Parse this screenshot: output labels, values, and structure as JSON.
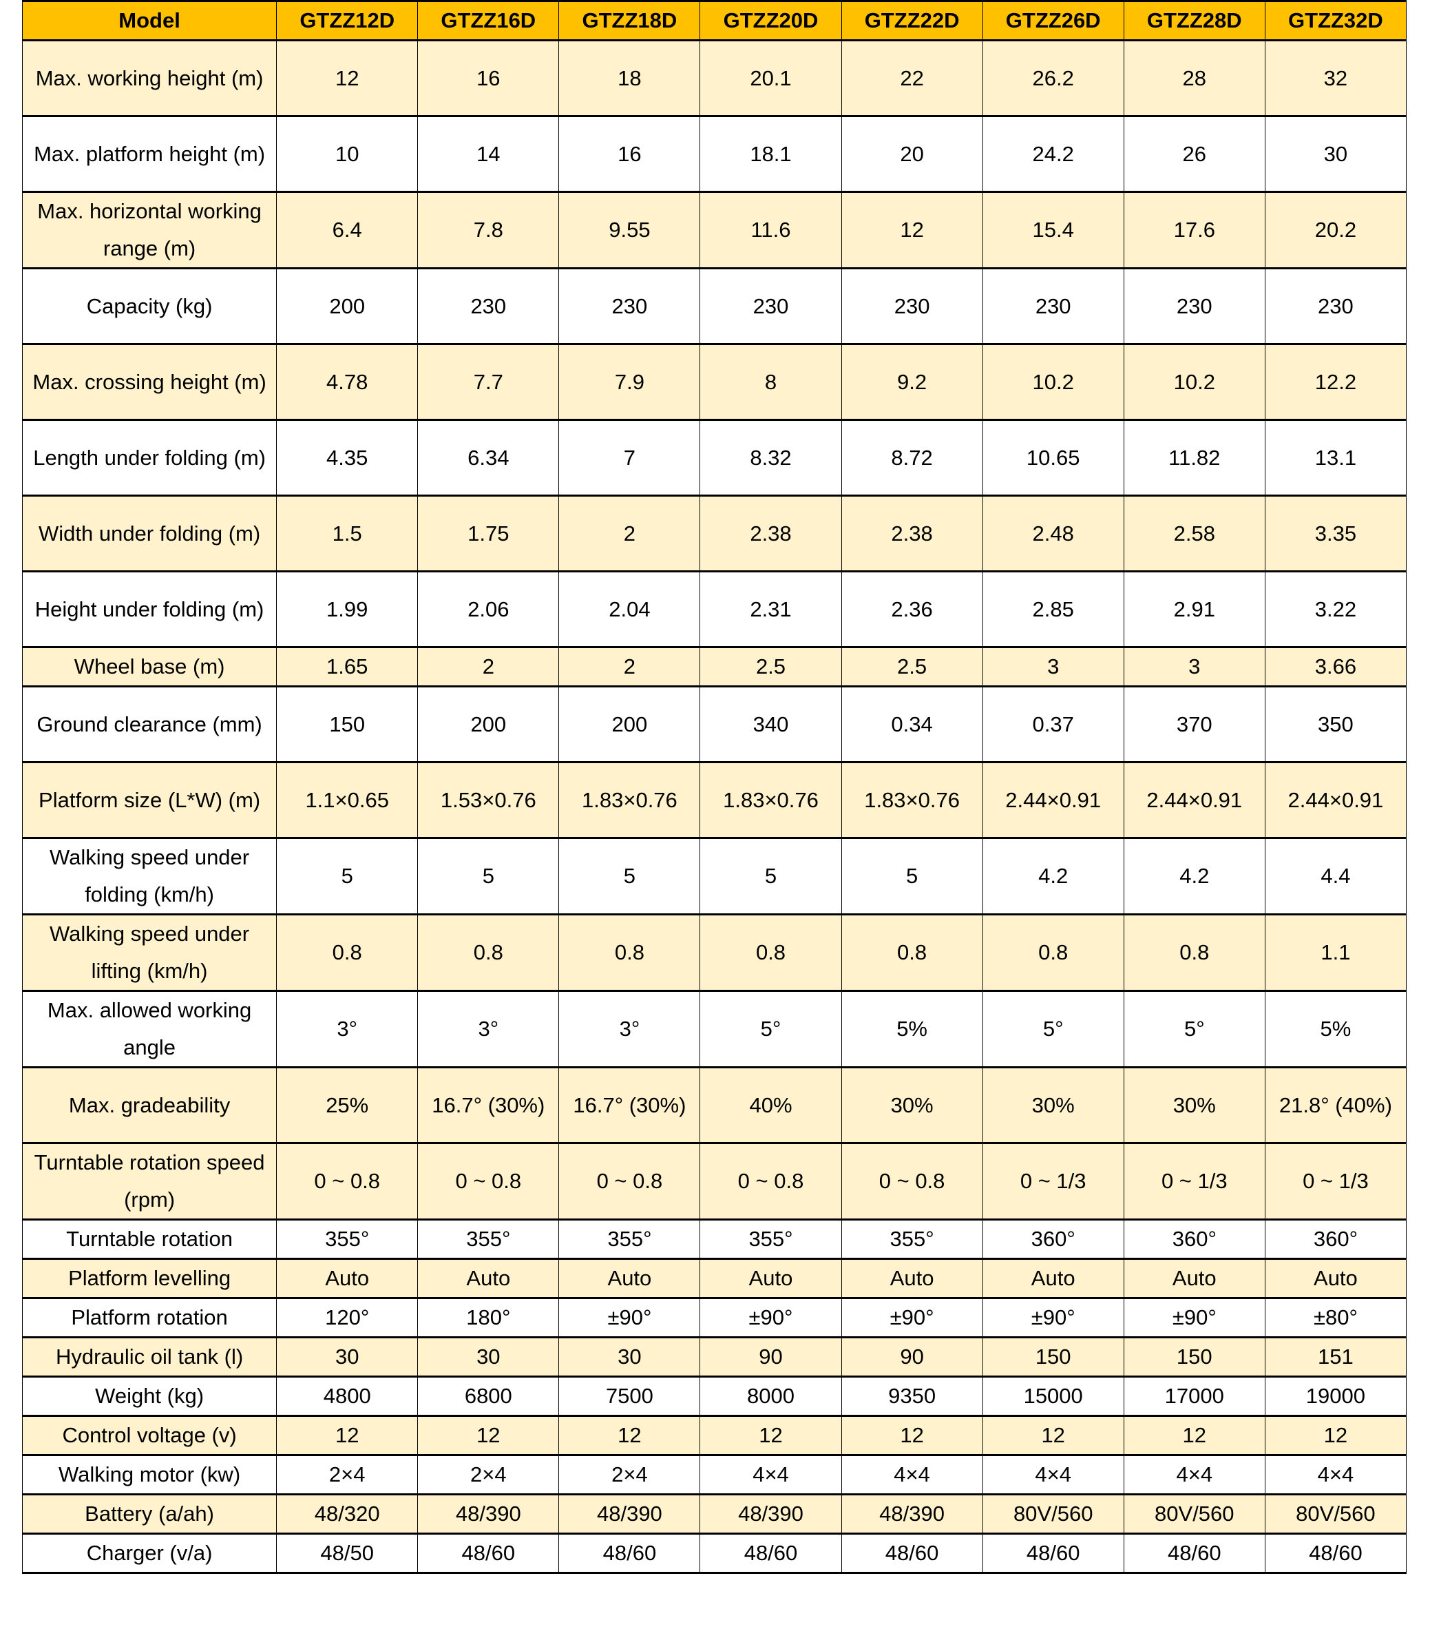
{
  "colors": {
    "header": "#FFC000",
    "shaded_row": "#FFF2CC",
    "plain_row": "#FFFFFF"
  },
  "table": {
    "header": [
      "Model",
      "GTZZ12D",
      "GTZZ16D",
      "GTZZ18D",
      "GTZZ20D",
      "GTZZ22D",
      "GTZZ26D",
      "GTZZ28D",
      "GTZZ32D"
    ],
    "rows": [
      {
        "label": "Max. working height (m)",
        "values": [
          "12",
          "16",
          "18",
          "20.1",
          "22",
          "26.2",
          "28",
          "32"
        ],
        "tall": true,
        "shaded": true
      },
      {
        "label": "Max. platform height (m)",
        "values": [
          "10",
          "14",
          "16",
          "18.1",
          "20",
          "24.2",
          "26",
          "30"
        ],
        "tall": true,
        "shaded": false
      },
      {
        "label": "Max. horizontal working range (m)",
        "values": [
          "6.4",
          "7.8",
          "9.55",
          "11.6",
          "12",
          "15.4",
          "17.6",
          "20.2"
        ],
        "tall": true,
        "shaded": true
      },
      {
        "label": "Capacity (kg)",
        "values": [
          "200",
          "230",
          "230",
          "230",
          "230",
          "230",
          "230",
          "230"
        ],
        "tall": true,
        "shaded": false
      },
      {
        "label": "Max. crossing height (m)",
        "values": [
          "4.78",
          "7.7",
          "7.9",
          "8",
          "9.2",
          "10.2",
          "10.2",
          "12.2"
        ],
        "tall": true,
        "shaded": true
      },
      {
        "label": "Length under folding (m)",
        "values": [
          "4.35",
          "6.34",
          "7",
          "8.32",
          "8.72",
          "10.65",
          "11.82",
          "13.1"
        ],
        "tall": true,
        "shaded": false
      },
      {
        "label": "Width under folding (m)",
        "values": [
          "1.5",
          "1.75",
          "2",
          "2.38",
          "2.38",
          "2.48",
          "2.58",
          "3.35"
        ],
        "tall": true,
        "shaded": true
      },
      {
        "label": "Height under folding (m)",
        "values": [
          "1.99",
          "2.06",
          "2.04",
          "2.31",
          "2.36",
          "2.85",
          "2.91",
          "3.22"
        ],
        "tall": true,
        "shaded": false
      },
      {
        "label": "Wheel base (m)",
        "values": [
          "1.65",
          "2",
          "2",
          "2.5",
          "2.5",
          "3",
          "3",
          "3.66"
        ],
        "tall": false,
        "shaded": true
      },
      {
        "label": "Ground clearance (mm)",
        "values": [
          "150",
          "200",
          "200",
          "340",
          "0.34",
          "0.37",
          "370",
          "350"
        ],
        "tall": true,
        "shaded": false
      },
      {
        "label": "Platform size (L*W) (m)",
        "values": [
          "1.1×0.65",
          "1.53×0.76",
          "1.83×0.76",
          "1.83×0.76",
          "1.83×0.76",
          "2.44×0.91",
          "2.44×0.91",
          "2.44×0.91"
        ],
        "tall": true,
        "shaded": true
      },
      {
        "label": "Walking speed under folding (km/h)",
        "values": [
          "5",
          "5",
          "5",
          "5",
          "5",
          "4.2",
          "4.2",
          "4.4"
        ],
        "tall": true,
        "shaded": false
      },
      {
        "label": "Walking speed under lifting (km/h)",
        "values": [
          "0.8",
          "0.8",
          "0.8",
          "0.8",
          "0.8",
          "0.8",
          "0.8",
          "1.1"
        ],
        "tall": true,
        "shaded": true
      },
      {
        "label": "Max. allowed working angle",
        "values": [
          "3°",
          "3°",
          "3°",
          "5°",
          "5%",
          "5°",
          "5°",
          "5%"
        ],
        "tall": true,
        "shaded": false
      },
      {
        "label": "Max. gradeability",
        "values": [
          "25%",
          "16.7° (30%)",
          "16.7° (30%)",
          "40%",
          "30%",
          "30%",
          "30%",
          "21.8° (40%)"
        ],
        "tall": true,
        "shaded": true
      },
      {
        "label": "Turntable rotation speed (rpm)",
        "values": [
          "0 ~ 0.8",
          "0 ~ 0.8",
          "0 ~ 0.8",
          "0 ~ 0.8",
          "0 ~ 0.8",
          "0 ~ 1/3",
          "0 ~ 1/3",
          "0 ~ 1/3"
        ],
        "tall": true,
        "shaded": true
      },
      {
        "label": "Turntable rotation",
        "values": [
          "355°",
          "355°",
          "355°",
          "355°",
          "355°",
          "360°",
          "360°",
          "360°"
        ],
        "tall": false,
        "shaded": false
      },
      {
        "label": "Platform levelling",
        "values": [
          "Auto",
          "Auto",
          "Auto",
          "Auto",
          "Auto",
          "Auto",
          "Auto",
          "Auto"
        ],
        "tall": false,
        "shaded": true
      },
      {
        "label": "Platform rotation",
        "values": [
          "120°",
          "180°",
          "±90°",
          "±90°",
          "±90°",
          "±90°",
          "±90°",
          "±80°"
        ],
        "tall": false,
        "shaded": false
      },
      {
        "label": "Hydraulic oil tank (l)",
        "values": [
          "30",
          "30",
          "30",
          "90",
          "90",
          "150",
          "150",
          "151"
        ],
        "tall": false,
        "shaded": true
      },
      {
        "label": "Weight (kg)",
        "values": [
          "4800",
          "6800",
          "7500",
          "8000",
          "9350",
          "15000",
          "17000",
          "19000"
        ],
        "tall": false,
        "shaded": false
      },
      {
        "label": "Control voltage (v)",
        "values": [
          "12",
          "12",
          "12",
          "12",
          "12",
          "12",
          "12",
          "12"
        ],
        "tall": false,
        "shaded": true
      },
      {
        "label": "Walking motor (kw)",
        "values": [
          "2×4",
          "2×4",
          "2×4",
          "4×4",
          "4×4",
          "4×4",
          "4×4",
          "4×4"
        ],
        "tall": false,
        "shaded": false
      },
      {
        "label": "Battery (a/ah)",
        "values": [
          "48/320",
          "48/390",
          "48/390",
          "48/390",
          "48/390",
          "80V/560",
          "80V/560",
          "80V/560"
        ],
        "tall": false,
        "shaded": true
      },
      {
        "label": "Charger (v/a)",
        "values": [
          "48/50",
          "48/60",
          "48/60",
          "48/60",
          "48/60",
          "48/60",
          "48/60",
          "48/60"
        ],
        "tall": false,
        "shaded": false
      }
    ]
  }
}
